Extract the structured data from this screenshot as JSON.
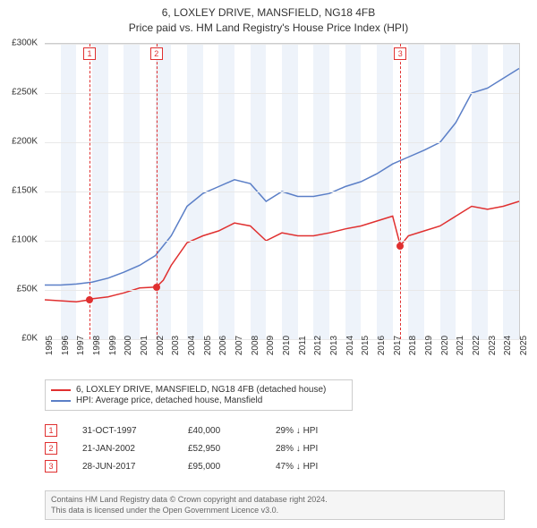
{
  "title_line1": "6, LOXLEY DRIVE, MANSFIELD, NG18 4FB",
  "title_line2": "Price paid vs. HM Land Registry's House Price Index (HPI)",
  "chart": {
    "type": "line",
    "background_color": "#ffffff",
    "band_color": "#eef3fa",
    "grid_color": "#e8e8e8",
    "axis_color": "#cccccc",
    "text_color": "#333333",
    "ylim": [
      0,
      300000
    ],
    "ytick_step": 50000,
    "yticks": [
      "£0K",
      "£50K",
      "£100K",
      "£150K",
      "£200K",
      "£250K",
      "£300K"
    ],
    "xlim": [
      1995,
      2025
    ],
    "xticks": [
      1995,
      1996,
      1997,
      1998,
      1999,
      2000,
      2001,
      2002,
      2003,
      2004,
      2005,
      2006,
      2007,
      2008,
      2009,
      2010,
      2011,
      2012,
      2013,
      2014,
      2015,
      2016,
      2017,
      2018,
      2019,
      2020,
      2021,
      2022,
      2023,
      2024,
      2025
    ],
    "label_fontsize": 10,
    "series": [
      {
        "name": "6, LOXLEY DRIVE, MANSFIELD, NG18 4FB (detached house)",
        "color": "#e03030",
        "line_width": 1.5,
        "points": [
          [
            1995,
            40000
          ],
          [
            1996,
            39000
          ],
          [
            1997,
            38000
          ],
          [
            1997.83,
            40000
          ],
          [
            1998,
            41000
          ],
          [
            1999,
            43000
          ],
          [
            2000,
            47000
          ],
          [
            2001,
            52000
          ],
          [
            2002.06,
            52950
          ],
          [
            2002.5,
            60000
          ],
          [
            2003,
            75000
          ],
          [
            2004,
            98000
          ],
          [
            2005,
            105000
          ],
          [
            2006,
            110000
          ],
          [
            2007,
            118000
          ],
          [
            2008,
            115000
          ],
          [
            2009,
            100000
          ],
          [
            2010,
            108000
          ],
          [
            2011,
            105000
          ],
          [
            2012,
            105000
          ],
          [
            2013,
            108000
          ],
          [
            2014,
            112000
          ],
          [
            2015,
            115000
          ],
          [
            2016,
            120000
          ],
          [
            2017,
            125000
          ],
          [
            2017.49,
            95000
          ],
          [
            2018,
            105000
          ],
          [
            2019,
            110000
          ],
          [
            2020,
            115000
          ],
          [
            2021,
            125000
          ],
          [
            2022,
            135000
          ],
          [
            2023,
            132000
          ],
          [
            2024,
            135000
          ],
          [
            2025,
            140000
          ]
        ]
      },
      {
        "name": "HPI: Average price, detached house, Mansfield",
        "color": "#5b7fc7",
        "line_width": 1.5,
        "points": [
          [
            1995,
            55000
          ],
          [
            1996,
            55000
          ],
          [
            1997,
            56000
          ],
          [
            1998,
            58000
          ],
          [
            1999,
            62000
          ],
          [
            2000,
            68000
          ],
          [
            2001,
            75000
          ],
          [
            2002,
            85000
          ],
          [
            2003,
            105000
          ],
          [
            2004,
            135000
          ],
          [
            2005,
            148000
          ],
          [
            2006,
            155000
          ],
          [
            2007,
            162000
          ],
          [
            2008,
            158000
          ],
          [
            2009,
            140000
          ],
          [
            2010,
            150000
          ],
          [
            2011,
            145000
          ],
          [
            2012,
            145000
          ],
          [
            2013,
            148000
          ],
          [
            2014,
            155000
          ],
          [
            2015,
            160000
          ],
          [
            2016,
            168000
          ],
          [
            2017,
            178000
          ],
          [
            2018,
            185000
          ],
          [
            2019,
            192000
          ],
          [
            2020,
            200000
          ],
          [
            2021,
            220000
          ],
          [
            2022,
            250000
          ],
          [
            2023,
            255000
          ],
          [
            2024,
            265000
          ],
          [
            2025,
            275000
          ]
        ]
      }
    ],
    "markers": [
      {
        "n": "1",
        "year": 1997.83,
        "price": 40000
      },
      {
        "n": "2",
        "year": 2002.06,
        "price": 52950
      },
      {
        "n": "3",
        "year": 2017.49,
        "price": 95000
      }
    ],
    "marker_color": "#e03030"
  },
  "legend": {
    "border_color": "#cccccc",
    "items": [
      {
        "label": "6, LOXLEY DRIVE, MANSFIELD, NG18 4FB (detached house)",
        "color": "#e03030"
      },
      {
        "label": "HPI: Average price, detached house, Mansfield",
        "color": "#5b7fc7"
      }
    ]
  },
  "sales": [
    {
      "n": "1",
      "date": "31-OCT-1997",
      "price": "£40,000",
      "diff": "29% ↓ HPI"
    },
    {
      "n": "2",
      "date": "21-JAN-2002",
      "price": "£52,950",
      "diff": "28% ↓ HPI"
    },
    {
      "n": "3",
      "date": "28-JUN-2017",
      "price": "£95,000",
      "diff": "47% ↓ HPI"
    }
  ],
  "footer_line1": "Contains HM Land Registry data © Crown copyright and database right 2024.",
  "footer_line2": "This data is licensed under the Open Government Licence v3.0."
}
